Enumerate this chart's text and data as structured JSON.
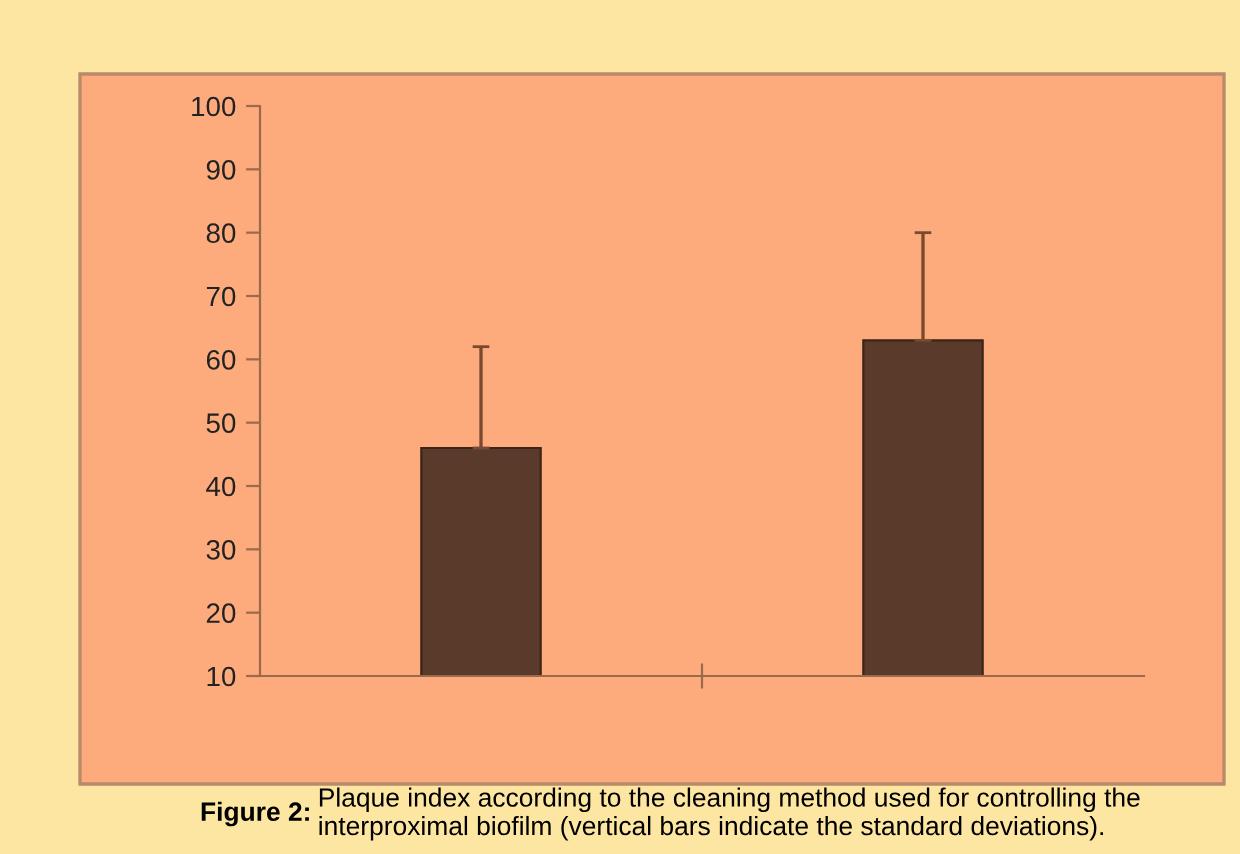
{
  "chart_data": {
    "type": "bar",
    "categories": [
      null,
      null
    ],
    "values": [
      46,
      63
    ],
    "errors": [
      [
        46,
        62
      ],
      [
        63,
        80
      ]
    ],
    "color": "#5a3b2b",
    "ylim": [
      10,
      100
    ],
    "yticks": [
      10,
      20,
      30,
      40,
      50,
      60,
      70,
      80,
      90,
      100
    ],
    "grid": false,
    "legend": false,
    "annotations": [
      "Figure 2:",
      "Plaque index according to the cleaning method used for controlling the interproximal biofilm (vertical bars indicate the standard deviations)."
    ]
  }
}
